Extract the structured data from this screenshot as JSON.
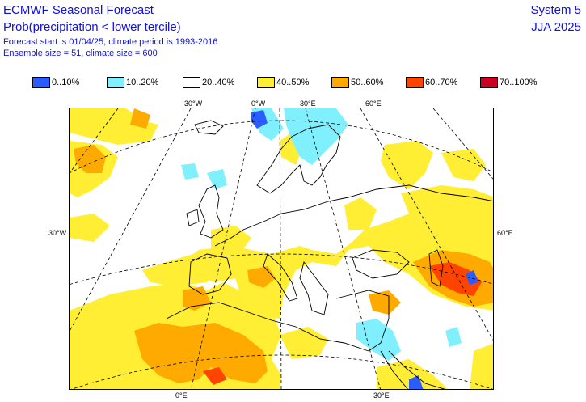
{
  "header": {
    "title": "ECMWF Seasonal Forecast",
    "subtitle": "Prob(precipitation < lower tercile)",
    "forecast_line": "Forecast start is 01/04/25, climate period is 1993-2016",
    "ensemble_line": "Ensemble size = 51, climate size = 600",
    "system": "System 5",
    "period": "JJA 2025"
  },
  "legend": [
    {
      "label": "0..10%",
      "color": "#2b5cff"
    },
    {
      "label": "10..20%",
      "color": "#80f0ff"
    },
    {
      "label": "20..40%",
      "color": "#ffffff"
    },
    {
      "label": "40..50%",
      "color": "#ffee33"
    },
    {
      "label": "50..60%",
      "color": "#ffaa00"
    },
    {
      "label": "60..70%",
      "color": "#ff4400"
    },
    {
      "label": "70..100%",
      "color": "#cc0022"
    }
  ],
  "map_labels": {
    "top": [
      "30°W",
      "0°W",
      "30°E",
      "60°E"
    ],
    "bottom": [
      "0°E",
      "30°E"
    ],
    "left": "30°W",
    "right": "60°E"
  },
  "colors": {
    "text": "#1010e0",
    "coast": "#000000",
    "grid_dash": "#000000"
  }
}
